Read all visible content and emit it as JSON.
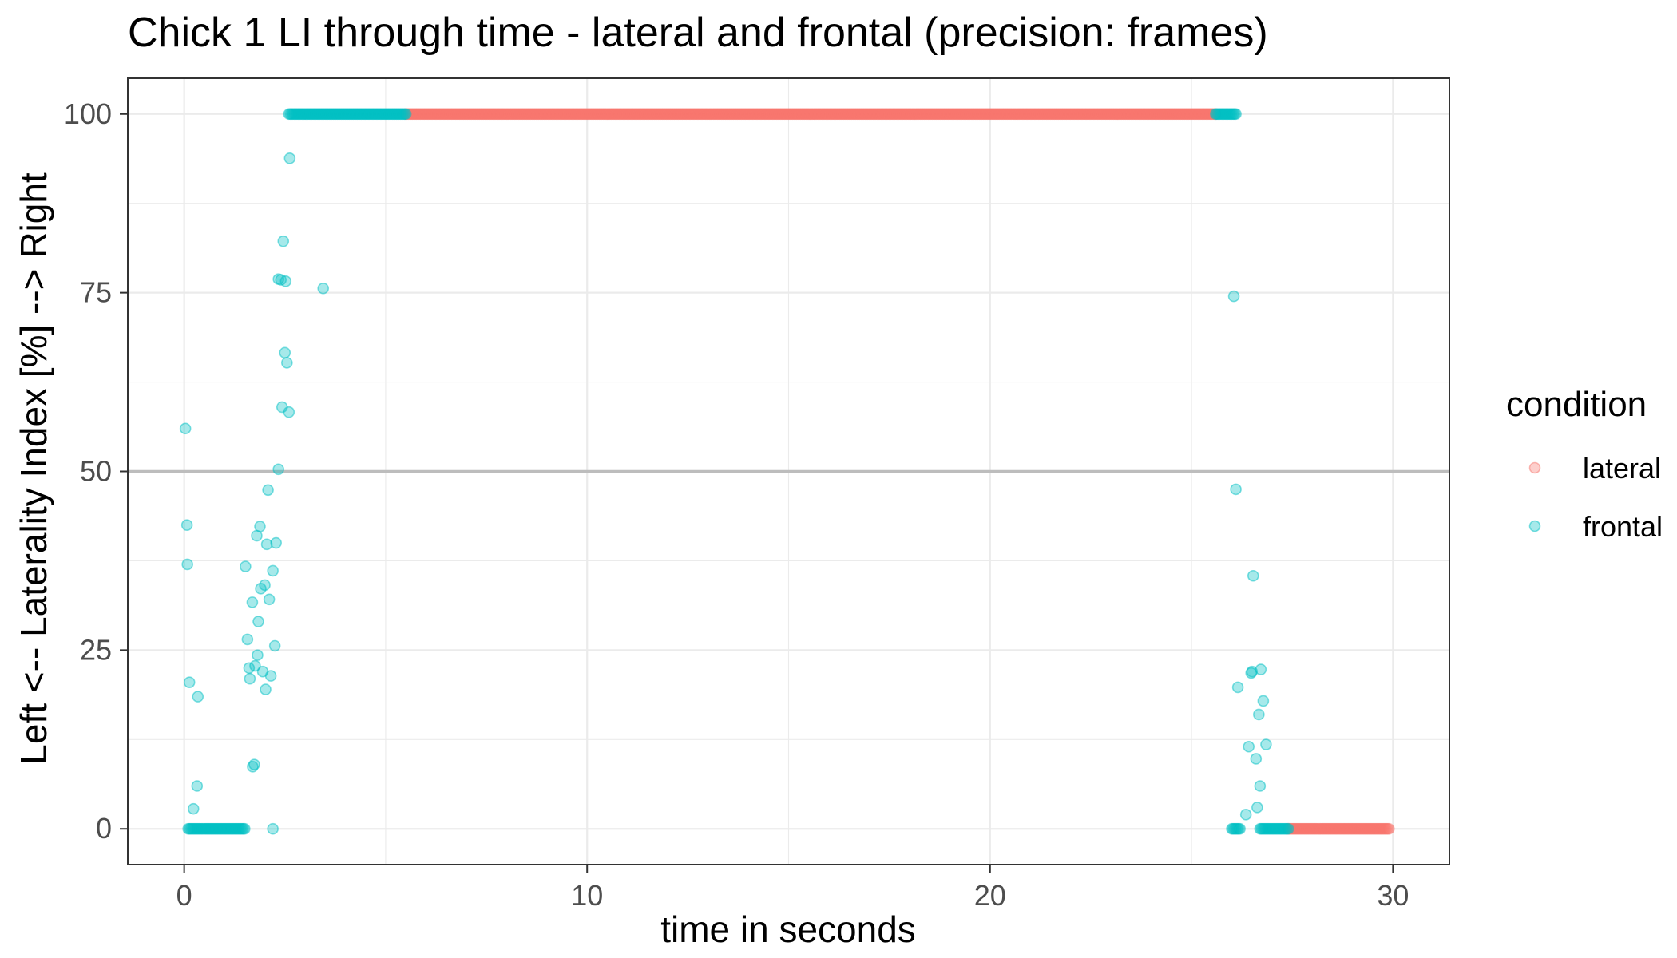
{
  "chart_data": {
    "type": "scatter",
    "title": "Chick 1 LI through time - lateral and frontal (precision: frames)",
    "xlabel": "time in seconds",
    "ylabel": "Left <-- Laterality Index [%] --> Right",
    "xlim": [
      -1.4,
      31.4
    ],
    "ylim": [
      -5,
      105
    ],
    "xticks": [
      0,
      10,
      20,
      30
    ],
    "xtick_labels": [
      "0",
      "10",
      "20",
      "30"
    ],
    "yticks": [
      0,
      25,
      50,
      75,
      100
    ],
    "ytick_labels": [
      "0",
      "25",
      "50",
      "75",
      "100"
    ],
    "grid": true,
    "reference_line": 50,
    "legend": {
      "title": "condition",
      "position": "right",
      "labels": [
        "lateral",
        "frontal"
      ]
    },
    "colors": {
      "lateral": "#F8766D",
      "frontal": "#00BFC4",
      "reference": "#bdbdbd",
      "grid": "#ebebeb"
    },
    "series": [
      {
        "name": "lateral",
        "runs": [
          {
            "x_start": 5.5,
            "x_end": 25.6,
            "y": 100
          },
          {
            "x_start": 27.4,
            "x_end": 29.9,
            "y": 0
          }
        ],
        "points": []
      },
      {
        "name": "frontal",
        "runs": [
          {
            "x_start": 2.6,
            "x_end": 5.5,
            "y": 100
          },
          {
            "x_start": 25.6,
            "x_end": 26.1,
            "y": 100
          },
          {
            "x_start": 0.1,
            "x_end": 1.5,
            "y": 0
          },
          {
            "x_start": 26.0,
            "x_end": 26.2,
            "y": 0
          },
          {
            "x_start": 26.7,
            "x_end": 27.4,
            "y": 0
          }
        ],
        "points": [
          [
            0.03,
            56
          ],
          [
            0.07,
            42.5
          ],
          [
            0.08,
            37
          ],
          [
            0.13,
            20.5
          ],
          [
            0.34,
            18.5
          ],
          [
            0.32,
            6
          ],
          [
            0.23,
            2.8
          ],
          [
            1.52,
            36.7
          ],
          [
            1.57,
            26.5
          ],
          [
            1.61,
            22.5
          ],
          [
            1.63,
            21
          ],
          [
            1.69,
            31.7
          ],
          [
            1.7,
            8.7
          ],
          [
            1.74,
            9
          ],
          [
            1.76,
            22.8
          ],
          [
            1.8,
            41
          ],
          [
            1.82,
            24.3
          ],
          [
            1.84,
            29
          ],
          [
            1.88,
            42.3
          ],
          [
            1.9,
            33.6
          ],
          [
            1.95,
            22
          ],
          [
            2.0,
            34.1
          ],
          [
            2.02,
            19.5
          ],
          [
            2.05,
            39.8
          ],
          [
            2.08,
            47.4
          ],
          [
            2.11,
            32.1
          ],
          [
            2.15,
            21.4
          ],
          [
            2.2,
            36.1
          ],
          [
            2.25,
            25.6
          ],
          [
            2.28,
            40
          ],
          [
            2.34,
            50.3
          ],
          [
            2.34,
            76.9
          ],
          [
            2.4,
            76.8
          ],
          [
            2.43,
            59
          ],
          [
            2.46,
            82.2
          ],
          [
            2.5,
            66.6
          ],
          [
            2.52,
            76.6
          ],
          [
            2.55,
            65.2
          ],
          [
            2.6,
            58.3
          ],
          [
            2.62,
            93.8
          ],
          [
            3.45,
            75.6
          ],
          [
            2.2,
            0
          ],
          [
            26.05,
            74.5
          ],
          [
            26.1,
            47.5
          ],
          [
            26.15,
            19.8
          ],
          [
            26.35,
            2
          ],
          [
            26.42,
            11.5
          ],
          [
            26.48,
            21.8
          ],
          [
            26.5,
            22
          ],
          [
            26.53,
            35.4
          ],
          [
            26.6,
            9.8
          ],
          [
            26.63,
            3
          ],
          [
            26.67,
            16
          ],
          [
            26.7,
            6
          ],
          [
            26.72,
            22.3
          ],
          [
            26.78,
            17.9
          ],
          [
            26.85,
            11.8
          ]
        ]
      }
    ]
  }
}
